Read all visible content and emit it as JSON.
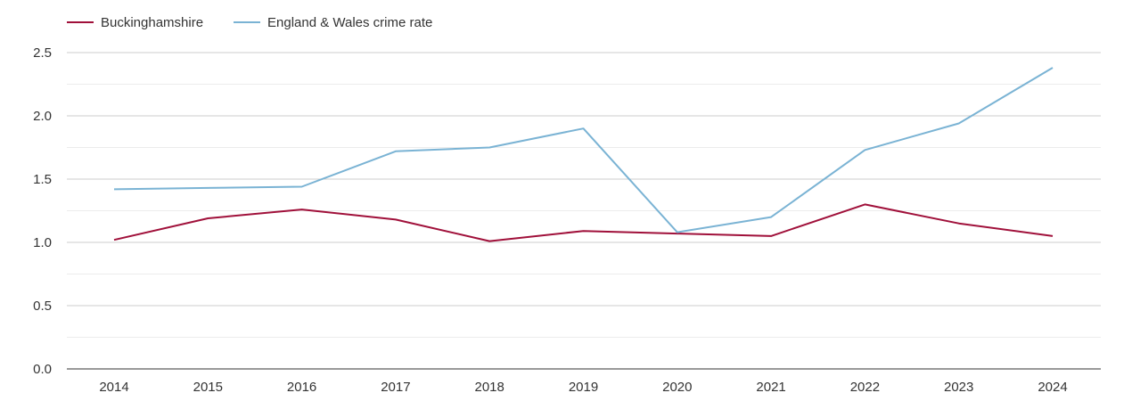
{
  "chart_data": {
    "type": "line",
    "x": [
      "2014",
      "2015",
      "2016",
      "2017",
      "2018",
      "2019",
      "2020",
      "2021",
      "2022",
      "2023",
      "2024"
    ],
    "series": [
      {
        "name": "Buckinghamshire",
        "color": "#a0103a",
        "values": [
          1.02,
          1.19,
          1.26,
          1.18,
          1.01,
          1.09,
          1.07,
          1.05,
          1.3,
          1.15,
          1.05
        ]
      },
      {
        "name": "England & Wales crime rate",
        "color": "#7ab3d4",
        "values": [
          1.42,
          1.43,
          1.44,
          1.72,
          1.75,
          1.9,
          1.08,
          1.2,
          1.73,
          1.94,
          2.38
        ]
      }
    ],
    "yticks": [
      "0.0",
      "0.5",
      "1.0",
      "1.5",
      "2.0",
      "2.5"
    ],
    "ylim": [
      0,
      2.5
    ],
    "grid": true,
    "legend": "top-left",
    "title": "",
    "xlabel": "",
    "ylabel": ""
  }
}
